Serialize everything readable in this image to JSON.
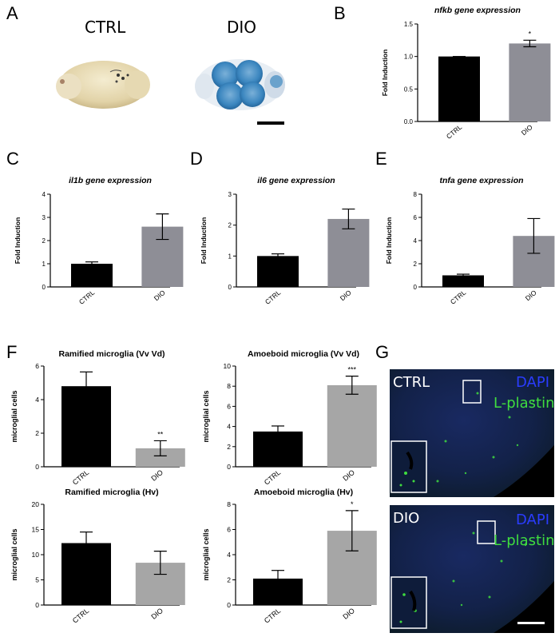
{
  "panel_letters": {
    "A": "A",
    "B": "B",
    "C": "C",
    "D": "D",
    "E": "E",
    "F": "F",
    "G": "G"
  },
  "panel_a": {
    "ctrl_label": "CTRL",
    "dio_label": "DIO"
  },
  "panel_g": {
    "ctrl_label": "CTRL",
    "dio_label": "DIO",
    "dapi_label": "DAPI",
    "lplastin_label": "L-plastin",
    "dapi_color": "#2a3cff",
    "lplastin_color": "#3fdc3f"
  },
  "colors": {
    "ctrl_bar": "#000000",
    "dio_bar_qpcr": "#8e8e96",
    "dio_bar_microglia": "#a6a6a6"
  },
  "chart_data": [
    {
      "id": "B",
      "type": "bar",
      "title": "nfkb gene expression",
      "title_italic": true,
      "ylabel": "Fold Induction",
      "categories": [
        "CTRL",
        "DIO"
      ],
      "values": [
        1.0,
        1.2
      ],
      "errors": [
        0.0,
        0.05
      ],
      "significance": [
        "",
        "*"
      ],
      "ylim": [
        0,
        1.5
      ],
      "ticks": [
        0.0,
        0.5,
        1.0,
        1.5
      ],
      "tick_labels": [
        "0.0",
        "0.5",
        "1.0",
        "1.5"
      ]
    },
    {
      "id": "C",
      "type": "bar",
      "title": "il1b gene expression",
      "title_italic": true,
      "ylabel": "Fold Induction",
      "categories": [
        "CTRL",
        "DIO"
      ],
      "values": [
        1.0,
        2.6
      ],
      "errors": [
        0.08,
        0.55
      ],
      "significance": [
        "",
        ""
      ],
      "ylim": [
        0,
        4
      ],
      "ticks": [
        0,
        1,
        2,
        3,
        4
      ],
      "tick_labels": [
        "0",
        "1",
        "2",
        "3",
        "4"
      ]
    },
    {
      "id": "D",
      "type": "bar",
      "title": "il6 gene expression",
      "title_italic": true,
      "ylabel": "Fold Induction",
      "categories": [
        "CTRL",
        "DIO"
      ],
      "values": [
        1.0,
        2.2
      ],
      "errors": [
        0.07,
        0.32
      ],
      "significance": [
        "",
        ""
      ],
      "ylim": [
        0,
        3
      ],
      "ticks": [
        0,
        1,
        2,
        3
      ],
      "tick_labels": [
        "0",
        "1",
        "2",
        "3"
      ]
    },
    {
      "id": "E",
      "type": "bar",
      "title": "tnfa gene expression",
      "title_italic": true,
      "ylabel": "Fold Induction",
      "categories": [
        "CTRL",
        "DIO"
      ],
      "values": [
        1.0,
        4.4
      ],
      "errors": [
        0.1,
        1.5
      ],
      "significance": [
        "",
        ""
      ],
      "ylim": [
        0,
        8
      ],
      "ticks": [
        0,
        2,
        4,
        6,
        8
      ],
      "tick_labels": [
        "0",
        "2",
        "4",
        "6",
        "8"
      ]
    },
    {
      "id": "F1",
      "type": "bar",
      "title": "Ramified microglia (Vv Vd)",
      "title_italic": false,
      "ylabel": "microglial cells",
      "categories": [
        "CTRL",
        "DIO"
      ],
      "values": [
        4.8,
        1.1
      ],
      "errors": [
        0.85,
        0.45
      ],
      "significance": [
        "",
        "**"
      ],
      "ylim": [
        0,
        6
      ],
      "ticks": [
        0,
        2,
        4,
        6
      ],
      "tick_labels": [
        "0",
        "2",
        "4",
        "6"
      ]
    },
    {
      "id": "F2",
      "type": "bar",
      "title": "Amoeboid microglia (Vv Vd)",
      "title_italic": false,
      "ylabel": "microglial cells",
      "categories": [
        "CTRL",
        "DIO"
      ],
      "values": [
        3.5,
        8.1
      ],
      "errors": [
        0.55,
        0.9
      ],
      "significance": [
        "",
        "***"
      ],
      "ylim": [
        0,
        10
      ],
      "ticks": [
        0,
        2,
        4,
        6,
        8,
        10
      ],
      "tick_labels": [
        "0",
        "2",
        "4",
        "6",
        "8",
        "10"
      ]
    },
    {
      "id": "F3",
      "type": "bar",
      "title": "Ramified microglia (Hv)",
      "title_italic": false,
      "ylabel": "microglial cells",
      "categories": [
        "CTRL",
        "DIO"
      ],
      "values": [
        12.3,
        8.4
      ],
      "errors": [
        2.2,
        2.3
      ],
      "significance": [
        "",
        ""
      ],
      "ylim": [
        0,
        20
      ],
      "ticks": [
        0,
        5,
        10,
        15,
        20
      ],
      "tick_labels": [
        "0",
        "5",
        "10",
        "15",
        "20"
      ]
    },
    {
      "id": "F4",
      "type": "bar",
      "title": "Amoeboid microglia (Hv)",
      "title_italic": false,
      "ylabel": "microglial cells",
      "categories": [
        "CTRL",
        "DIO"
      ],
      "values": [
        2.1,
        5.9
      ],
      "errors": [
        0.65,
        1.6
      ],
      "significance": [
        "",
        "*"
      ],
      "ylim": [
        0,
        8
      ],
      "ticks": [
        0,
        2,
        4,
        6,
        8
      ],
      "tick_labels": [
        "0",
        "2",
        "4",
        "6",
        "8"
      ]
    }
  ]
}
